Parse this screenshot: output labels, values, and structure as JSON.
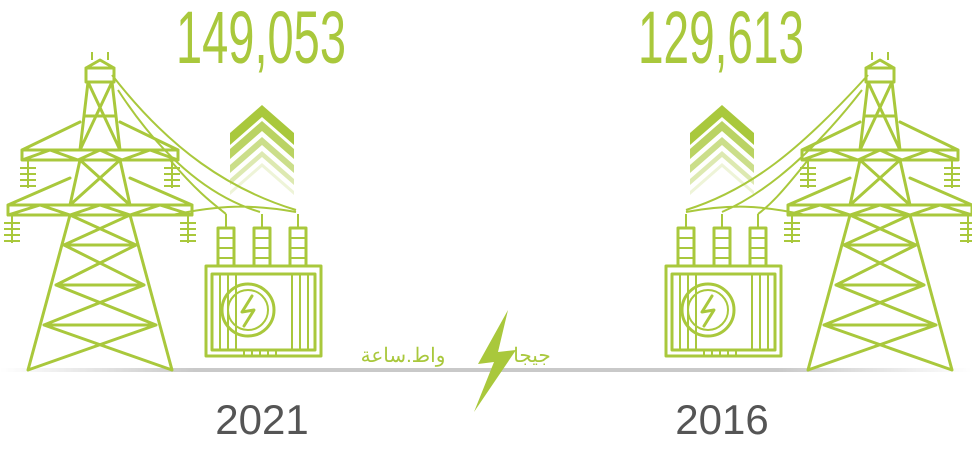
{
  "left": {
    "amount": "149,053",
    "year": "2021"
  },
  "right": {
    "amount": "129,613",
    "year": "2016"
  },
  "unit": {
    "prefix": "جيجا",
    "name": "واط.ساعة"
  }
}
